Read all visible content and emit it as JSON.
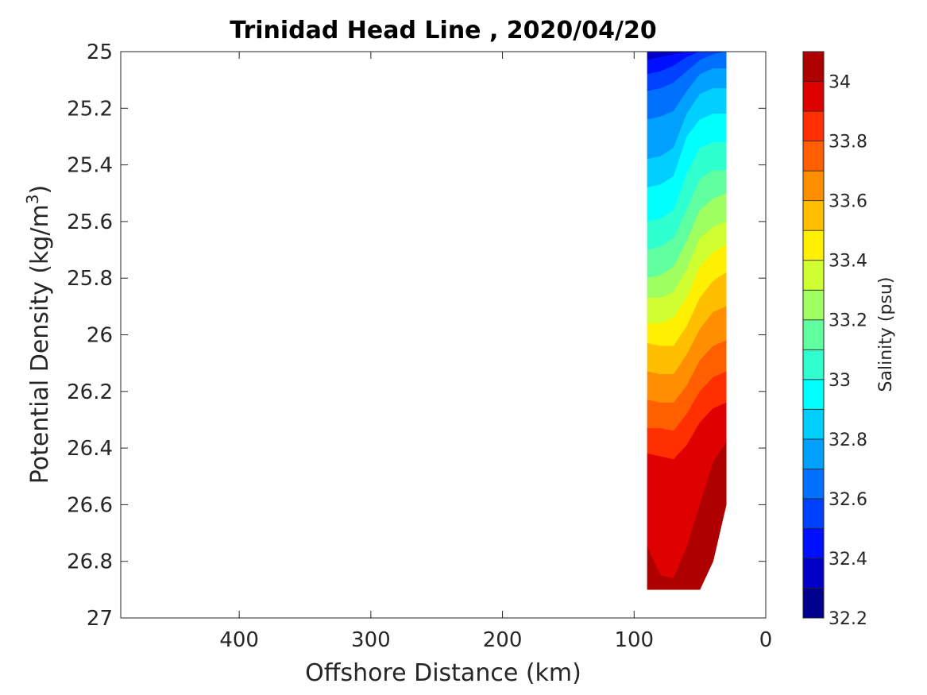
{
  "chart_data": {
    "type": "contour",
    "title": "Trinidad Head Line , 2020/04/20",
    "xlabel": "Offshore Distance (km)",
    "ylabel": "Potential Density (kg/m3)",
    "ylabel_base": "Potential Density (kg/m",
    "ylabel_sup": "3",
    "ylabel_end": ")",
    "colorbar_label": "Salinity (psu)",
    "x_ticks": [
      "400",
      "300",
      "200",
      "100",
      "0"
    ],
    "x_tick_values": [
      400,
      300,
      200,
      100,
      0
    ],
    "y_ticks": [
      "25",
      "25.2",
      "25.4",
      "25.6",
      "25.8",
      "26",
      "26.2",
      "26.4",
      "26.6",
      "26.8",
      "27"
    ],
    "y_tick_values": [
      25,
      25.2,
      25.4,
      25.6,
      25.8,
      26,
      26.2,
      26.4,
      26.6,
      26.8,
      27
    ],
    "xlim": [
      490,
      0
    ],
    "x_reversed": true,
    "ylim": [
      27,
      25
    ],
    "y_reversed": true,
    "colorbar_ticks": [
      "32.2",
      "32.4",
      "32.6",
      "32.8",
      "33",
      "33.2",
      "33.4",
      "33.6",
      "33.8",
      "34"
    ],
    "colorbar_tick_values": [
      32.2,
      32.4,
      32.6,
      32.8,
      33.0,
      33.2,
      33.4,
      33.6,
      33.8,
      34.0
    ],
    "colorbar_range": [
      32.2,
      34.1
    ],
    "levels": [
      32.2,
      32.3,
      32.4,
      32.5,
      32.6,
      32.7,
      32.8,
      32.9,
      33.0,
      33.1,
      33.2,
      33.3,
      33.4,
      33.5,
      33.6,
      33.7,
      33.8,
      33.9,
      34.0,
      34.1
    ],
    "level_colors": [
      "#00008f",
      "#0000c8",
      "#0010ff",
      "#0040ff",
      "#0070ff",
      "#00a0ff",
      "#00cfff",
      "#00ffff",
      "#30ffcf",
      "#60ff9f",
      "#9fff60",
      "#cfff30",
      "#ffef00",
      "#ffbf00",
      "#ff8f00",
      "#ff5f00",
      "#ff2f00",
      "#df0000",
      "#af0000"
    ],
    "grid": false,
    "data_extent": {
      "x": [
        90,
        30
      ],
      "y": [
        25,
        26.9
      ]
    },
    "section_x": [
      90,
      80,
      70,
      60,
      50,
      40,
      30
    ],
    "section_bottom_y": [
      26.9,
      26.9,
      26.9,
      26.9,
      26.9,
      26.8,
      26.6
    ],
    "isohalines": [
      {
        "s": 32.3,
        "y": [
          25.0,
          25.0,
          25.0,
          25.0,
          25.0,
          25.0,
          25.0
        ]
      },
      {
        "s": 32.4,
        "y": [
          25.03,
          25.02,
          25.01,
          25.0,
          25.0,
          25.0,
          25.0
        ]
      },
      {
        "s": 32.5,
        "y": [
          25.08,
          25.07,
          25.05,
          25.02,
          25.0,
          25.0,
          25.0
        ]
      },
      {
        "s": 32.6,
        "y": [
          25.14,
          25.13,
          25.11,
          25.07,
          25.03,
          25.01,
          25.0
        ]
      },
      {
        "s": 32.7,
        "y": [
          25.24,
          25.23,
          25.21,
          25.14,
          25.08,
          25.06,
          25.06
        ]
      },
      {
        "s": 32.8,
        "y": [
          25.38,
          25.37,
          25.34,
          25.22,
          25.15,
          25.13,
          25.13
        ]
      },
      {
        "s": 32.9,
        "y": [
          25.48,
          25.47,
          25.44,
          25.3,
          25.24,
          25.22,
          25.22
        ]
      },
      {
        "s": 33.0,
        "y": [
          25.6,
          25.59,
          25.56,
          25.43,
          25.34,
          25.32,
          25.32
        ]
      },
      {
        "s": 33.1,
        "y": [
          25.7,
          25.69,
          25.66,
          25.56,
          25.45,
          25.42,
          25.42
        ]
      },
      {
        "s": 33.2,
        "y": [
          25.8,
          25.79,
          25.76,
          25.67,
          25.56,
          25.52,
          25.5
        ]
      },
      {
        "s": 33.3,
        "y": [
          25.87,
          25.87,
          25.85,
          25.77,
          25.66,
          25.62,
          25.6
        ]
      },
      {
        "s": 33.4,
        "y": [
          25.96,
          25.96,
          25.94,
          25.87,
          25.76,
          25.71,
          25.68
        ]
      },
      {
        "s": 33.5,
        "y": [
          26.03,
          26.04,
          26.04,
          25.97,
          25.87,
          25.81,
          25.78
        ]
      },
      {
        "s": 33.6,
        "y": [
          26.13,
          26.14,
          26.14,
          26.07,
          25.98,
          25.92,
          25.9
        ]
      },
      {
        "s": 33.7,
        "y": [
          26.23,
          26.24,
          26.24,
          26.18,
          26.09,
          26.04,
          26.02
        ]
      },
      {
        "s": 33.8,
        "y": [
          26.33,
          26.33,
          26.34,
          26.28,
          26.2,
          26.15,
          26.13
        ]
      },
      {
        "s": 33.9,
        "y": [
          26.42,
          26.43,
          26.44,
          26.39,
          26.31,
          26.26,
          26.24
        ]
      },
      {
        "s": 34.0,
        "y": [
          26.75,
          26.85,
          26.86,
          26.75,
          26.6,
          26.45,
          26.38
        ]
      }
    ]
  }
}
